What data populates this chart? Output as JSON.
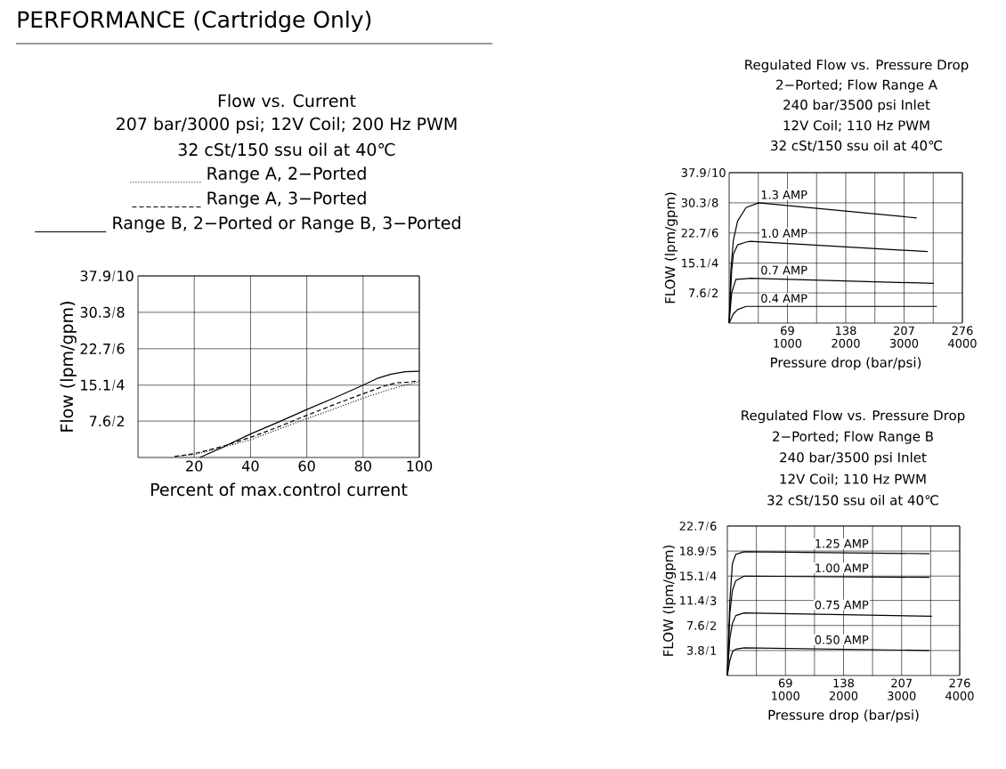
{
  "chart_data": [
    {
      "type": "line",
      "title": "Flow vs. Current",
      "subtitle": "207 bar/3000 psi; 12V Coil; 200 Hz PWM",
      "annotations": [
        "32 cSt/150 ssu oil at 40℃",
        "PERFORMANCE (Cartridge Only)"
      ],
      "xlabel": "Percent of max.control current",
      "ylabel": "Flow (lpm/gpm)",
      "xlim": [
        0,
        100
      ],
      "xticks": [
        20,
        40,
        60,
        80,
        100
      ],
      "ylim": [
        0,
        37.9
      ],
      "yticks": [
        7.6,
        15.1,
        22.7,
        30.3,
        37.9
      ],
      "y2lim": [
        0,
        10
      ],
      "y2ticks": [
        2,
        4,
        6,
        8,
        10
      ],
      "grid": true,
      "legend": "top",
      "marker": "none",
      "series": [
        {
          "name": "Range A, 2−Ported",
          "color": "#000000",
          "line_style": "dotted",
          "x": [
            15,
            20,
            30,
            40,
            50,
            60,
            70,
            80,
            90,
            95,
            100
          ],
          "values": [
            0.3,
            0.6,
            2.1,
            3.7,
            5.9,
            8.1,
            10.2,
            12.4,
            14.3,
            15.1,
            15.8
          ]
        },
        {
          "name": "Range A, 3−Ported",
          "color": "#000000",
          "line_style": "dashed",
          "x": [
            13,
            20,
            30,
            40,
            50,
            60,
            70,
            80,
            88,
            92,
            96,
            100
          ],
          "values": [
            0.2,
            0.8,
            2.3,
            4.2,
            6.4,
            8.8,
            11.1,
            13.3,
            15.0,
            15.6,
            15.7,
            16.0
          ]
        },
        {
          "name": "Range B, 2−Ported or Range B, 3−Ported",
          "color": "#000000",
          "line_style": "solid",
          "x": [
            22,
            30,
            40,
            50,
            60,
            70,
            80,
            85,
            90,
            95,
            100
          ],
          "values": [
            0,
            2.1,
            4.9,
            7.4,
            10.0,
            12.5,
            15.1,
            16.5,
            17.4,
            17.9,
            18.0
          ]
        }
      ]
    },
    {
      "type": "line",
      "title": "Regulated Flow vs. Pressure Drop",
      "subtitle": "2−Ported; Flow Range A",
      "annotations": [
        "240 bar/3500 psi Inlet",
        "12V Coil; 110 Hz PWM",
        "32 cSt/150 ssu oil at 40℃"
      ],
      "xlabel": "Pressure drop (bar/psi)",
      "ylabel": "FLOW (lpm/gpm)",
      "xlim": [
        0,
        276
      ],
      "xticks": [
        {
          "value": 34.5,
          "label": null
        },
        69,
        {
          "value": 103.5,
          "label": null
        },
        138,
        {
          "value": 172.5,
          "label": null
        },
        207,
        {
          "value": 241.5,
          "label": null
        },
        276
      ],
      "x2lim": [
        0,
        4000
      ],
      "x2ticks": [
        1000,
        2000,
        3000,
        4000
      ],
      "ylim": [
        0,
        37.9
      ],
      "yticks": [
        7.6,
        15.1,
        22.7,
        30.3,
        37.9
      ],
      "y2lim": [
        0,
        10
      ],
      "y2ticks": [
        2,
        4,
        6,
        8,
        10
      ],
      "grid": true,
      "marker": "none",
      "series": [
        {
          "name": "1.3 AMP",
          "color": "#000000",
          "x": [
            0,
            2,
            5,
            10,
            20,
            35,
            222
          ],
          "values": [
            0,
            13.2,
            20.8,
            25.7,
            29.1,
            30.3,
            26.5
          ]
        },
        {
          "name": "1.0 AMP",
          "color": "#000000",
          "x": [
            0,
            3,
            5,
            10,
            20,
            25,
            235
          ],
          "values": [
            0,
            13.2,
            17.4,
            19.7,
            20.4,
            20.6,
            18.0
          ]
        },
        {
          "name": "0.7 AMP",
          "color": "#000000",
          "x": [
            0,
            3,
            8,
            20,
            25,
            242
          ],
          "values": [
            0,
            7.6,
            11.0,
            11.2,
            11.3,
            10.0
          ]
        },
        {
          "name": "0.4 AMP",
          "color": "#000000",
          "x": [
            0,
            5,
            10,
            20,
            25,
            246
          ],
          "values": [
            0,
            2.3,
            3.4,
            4.2,
            4.2,
            4.2
          ]
        }
      ]
    },
    {
      "type": "line",
      "title": "Regulated Flow vs. Pressure Drop",
      "subtitle": "2−Ported; Flow Range B",
      "annotations": [
        "240 bar/3500 psi Inlet",
        "12V Coil; 110 Hz PWM",
        "32 cSt/150 ssu oil at 40℃"
      ],
      "xlabel": "Pressure drop (bar/psi)",
      "ylabel": "FLOW (lpm/gpm)",
      "xlim": [
        0,
        276
      ],
      "xticks": [
        {
          "value": 34.5,
          "label": null
        },
        69,
        {
          "value": 103.5,
          "label": null
        },
        138,
        {
          "value": 172.5,
          "label": null
        },
        207,
        {
          "value": 241.5,
          "label": null
        },
        276
      ],
      "x2lim": [
        0,
        4000
      ],
      "x2ticks": [
        1000,
        2000,
        3000,
        4000
      ],
      "ylim": [
        0,
        22.7
      ],
      "yticks": [
        3.8,
        7.6,
        11.4,
        15.1,
        18.9,
        22.7
      ],
      "y2lim": [
        0,
        6
      ],
      "y2ticks": [
        1,
        2,
        3,
        4,
        5,
        6
      ],
      "grid": true,
      "marker": "none",
      "series": [
        {
          "name": "1.25 AMP",
          "color": "#000000",
          "x": [
            0,
            3,
            6,
            10,
            20,
            240
          ],
          "values": [
            0,
            11.4,
            17.0,
            18.4,
            18.8,
            18.5
          ]
        },
        {
          "name": "1.00 AMP",
          "color": "#000000",
          "x": [
            0,
            3,
            6,
            10,
            20,
            240
          ],
          "values": [
            0,
            9.5,
            12.9,
            14.4,
            15.1,
            14.9
          ]
        },
        {
          "name": "0.75 AMP",
          "color": "#000000",
          "x": [
            0,
            3,
            6,
            10,
            20,
            243
          ],
          "values": [
            0,
            5.7,
            7.9,
            9.1,
            9.5,
            9.0
          ]
        },
        {
          "name": "0.50 AMP",
          "color": "#000000",
          "x": [
            0,
            3,
            6,
            10,
            20,
            240
          ],
          "values": [
            0,
            2.3,
            3.6,
            4.0,
            4.2,
            3.8
          ]
        }
      ]
    }
  ]
}
